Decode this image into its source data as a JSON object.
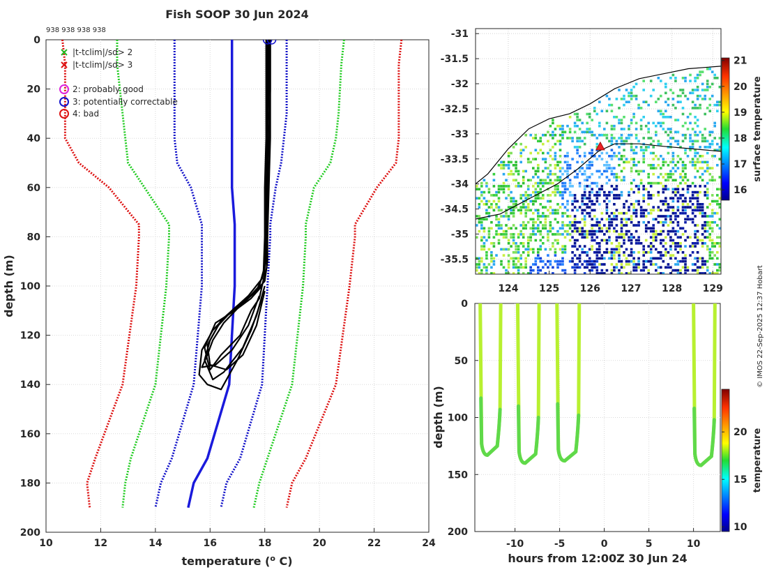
{
  "chart_data": [
    {
      "type": "line",
      "title": "Fish SOOP 30 Jun 2024",
      "xlabel": "temperature (° C)",
      "xlabel_prefix": "temperature (",
      "xlabel_sup": "o",
      "xlabel_suffix": " C)",
      "ylabel": "depth (m)",
      "xlim": [
        10,
        24
      ],
      "ylim": [
        200,
        0
      ],
      "xticks": [
        "10",
        "12",
        "14",
        "16",
        "18",
        "20",
        "22",
        "24"
      ],
      "yticks": [
        "0",
        "20",
        "40",
        "60",
        "80",
        "100",
        "120",
        "140",
        "160",
        "180",
        "200"
      ],
      "header_ids": "938 938 938 938",
      "legend": [
        {
          "label": "|t-tclim|/sd> 2",
          "marker": "x",
          "color": "#22bb22"
        },
        {
          "label": "|t-tclim|/sd> 3",
          "marker": "x",
          "color": "#dd1111"
        },
        {
          "label": "2: probably good",
          "marker": "o",
          "color": "#dd22dd"
        },
        {
          "label": "3: potentially correctable",
          "marker": "o",
          "color": "#1111cc"
        },
        {
          "label": "4: bad",
          "marker": "o",
          "color": "#dd1111"
        }
      ],
      "climatology": {
        "depth": [
          0,
          10,
          30,
          40,
          50,
          60,
          75,
          80,
          100,
          140,
          170,
          180,
          190
        ],
        "mean": [
          16.8,
          16.8,
          16.8,
          16.8,
          16.8,
          16.8,
          16.9,
          16.9,
          16.9,
          16.7,
          15.9,
          15.4,
          15.2
        ],
        "minus3sd": [
          10.6,
          10.7,
          10.7,
          10.7,
          11.2,
          12.3,
          13.4,
          13.4,
          13.3,
          12.8,
          11.8,
          11.5,
          11.6
        ],
        "minus2sd": [
          12.6,
          12.6,
          12.8,
          12.9,
          13.0,
          13.6,
          14.5,
          14.5,
          14.4,
          14.0,
          13.1,
          12.9,
          12.8
        ],
        "minus1sd": [
          14.7,
          14.7,
          14.7,
          14.7,
          14.8,
          15.3,
          15.7,
          15.7,
          15.7,
          15.4,
          14.6,
          14.2,
          14.0
        ],
        "plus1sd": [
          18.8,
          18.8,
          18.8,
          18.7,
          18.6,
          18.4,
          18.2,
          18.2,
          18.1,
          17.9,
          17.1,
          16.6,
          16.4
        ],
        "plus2sd": [
          20.9,
          20.8,
          20.7,
          20.6,
          20.4,
          19.8,
          19.5,
          19.5,
          19.4,
          19.0,
          18.1,
          17.8,
          17.6
        ],
        "plus3sd": [
          23.0,
          22.9,
          22.9,
          22.9,
          22.8,
          22.1,
          21.3,
          21.3,
          21.1,
          20.6,
          19.5,
          19.0,
          18.8
        ]
      },
      "profiles": [
        {
          "temp": [
            18.1,
            18.1,
            18.1,
            18.05,
            18.05,
            18.0,
            18.0,
            17.9,
            17.5,
            16.9,
            16.2,
            15.8,
            15.9,
            16.0,
            16.4,
            17.1,
            17.5,
            17.8,
            17.9,
            18.0
          ],
          "depth": [
            0,
            20,
            40,
            60,
            80,
            90,
            95,
            100,
            105,
            110,
            115,
            125,
            130,
            134,
            128,
            120,
            110,
            105,
            100,
            95
          ]
        },
        {
          "temp": [
            18.2,
            18.2,
            18.2,
            18.15,
            18.1,
            18.1,
            18.0,
            17.6,
            17.0,
            16.4,
            16.0,
            15.8,
            16.1,
            16.5,
            17.2,
            17.7,
            18.0
          ],
          "depth": [
            0,
            20,
            40,
            60,
            80,
            90,
            98,
            103,
            108,
            114,
            122,
            130,
            138,
            135,
            125,
            112,
            100
          ]
        },
        {
          "temp": [
            18.15,
            18.15,
            18.1,
            18.1,
            18.05,
            18.0,
            17.8,
            17.3,
            16.6,
            16.1,
            15.7,
            15.6,
            15.9,
            16.4,
            17.0,
            17.5,
            17.9
          ],
          "depth": [
            0,
            20,
            40,
            60,
            80,
            92,
            100,
            106,
            112,
            118,
            126,
            136,
            140,
            142,
            130,
            118,
            105
          ]
        },
        {
          "temp": [
            18.05,
            18.05,
            18.05,
            18.0,
            18.0,
            17.95,
            17.7,
            17.1,
            16.5,
            16.1,
            15.9,
            15.7,
            16.2,
            16.8,
            17.4,
            17.8
          ],
          "depth": [
            0,
            20,
            40,
            60,
            80,
            95,
            102,
            108,
            115,
            122,
            128,
            133,
            132,
            126,
            116,
            104
          ]
        },
        {
          "temp": [
            18.2,
            18.2,
            18.15,
            18.1,
            18.1,
            18.05,
            17.9,
            17.4,
            16.8,
            16.3,
            15.9,
            16.0,
            16.6,
            17.2,
            17.7,
            18.0
          ],
          "depth": [
            0,
            20,
            40,
            60,
            80,
            90,
            97,
            104,
            110,
            116,
            124,
            132,
            134,
            128,
            116,
            102
          ]
        }
      ],
      "surface_markers": [
        18.1,
        18.25
      ]
    },
    {
      "type": "heatmap",
      "xlim": [
        123.2,
        129.2
      ],
      "ylim": [
        -35.8,
        -30.9
      ],
      "xticks": [
        "124",
        "125",
        "126",
        "127",
        "128",
        "129"
      ],
      "yticks": [
        "-31",
        "-31.5",
        "-32",
        "-32.5",
        "-33",
        "-33.5",
        "-34",
        "-34.5",
        "-35",
        "-35.5"
      ],
      "colorbar": {
        "label": "surface temperature",
        "range": [
          15.6,
          21.1
        ],
        "ticks": [
          "16",
          "17",
          "18",
          "19",
          "20",
          "21"
        ]
      },
      "ship_position": [
        126.25,
        -33.25
      ],
      "coastline": [
        [
          123.2,
          -34.0
        ],
        [
          123.5,
          -33.8
        ],
        [
          124.0,
          -33.3
        ],
        [
          124.5,
          -32.9
        ],
        [
          125.0,
          -32.7
        ],
        [
          125.5,
          -32.6
        ],
        [
          126.0,
          -32.4
        ],
        [
          126.6,
          -32.1
        ],
        [
          127.2,
          -31.9
        ],
        [
          127.8,
          -31.8
        ],
        [
          128.4,
          -31.7
        ],
        [
          129.2,
          -31.65
        ]
      ],
      "shelf_contour": [
        [
          123.2,
          -34.7
        ],
        [
          123.8,
          -34.6
        ],
        [
          124.5,
          -34.3
        ],
        [
          125.2,
          -34.0
        ],
        [
          125.7,
          -33.7
        ],
        [
          126.2,
          -33.35
        ],
        [
          126.6,
          -33.2
        ],
        [
          127.2,
          -33.2
        ],
        [
          127.8,
          -33.25
        ],
        [
          128.5,
          -33.3
        ],
        [
          129.2,
          -33.35
        ]
      ]
    },
    {
      "type": "scatter",
      "xlabel": "hours from 12:00Z 30 Jun 24",
      "ylabel": "depth (m)",
      "xlim": [
        -14.5,
        13.0
      ],
      "ylim": [
        200,
        0
      ],
      "xticks": [
        "-10",
        "-5",
        "0",
        "5",
        "10"
      ],
      "yticks": [
        "0",
        "50",
        "100",
        "150",
        "200"
      ],
      "colorbar": {
        "label": "temperature",
        "range": [
          9.5,
          24.5
        ],
        "ticks": [
          "10",
          "15",
          "20"
        ]
      },
      "casts": [
        {
          "start": -13.9,
          "end": -11.6,
          "max_depth": 133
        },
        {
          "start": -9.7,
          "end": -7.3,
          "max_depth": 140
        },
        {
          "start": -5.3,
          "end": -2.8,
          "max_depth": 138
        },
        {
          "start": 10.0,
          "end": 12.4,
          "max_depth": 142
        }
      ]
    }
  ],
  "watermark": "© IMOS 22-Sep-2025 12:37 Hobart"
}
